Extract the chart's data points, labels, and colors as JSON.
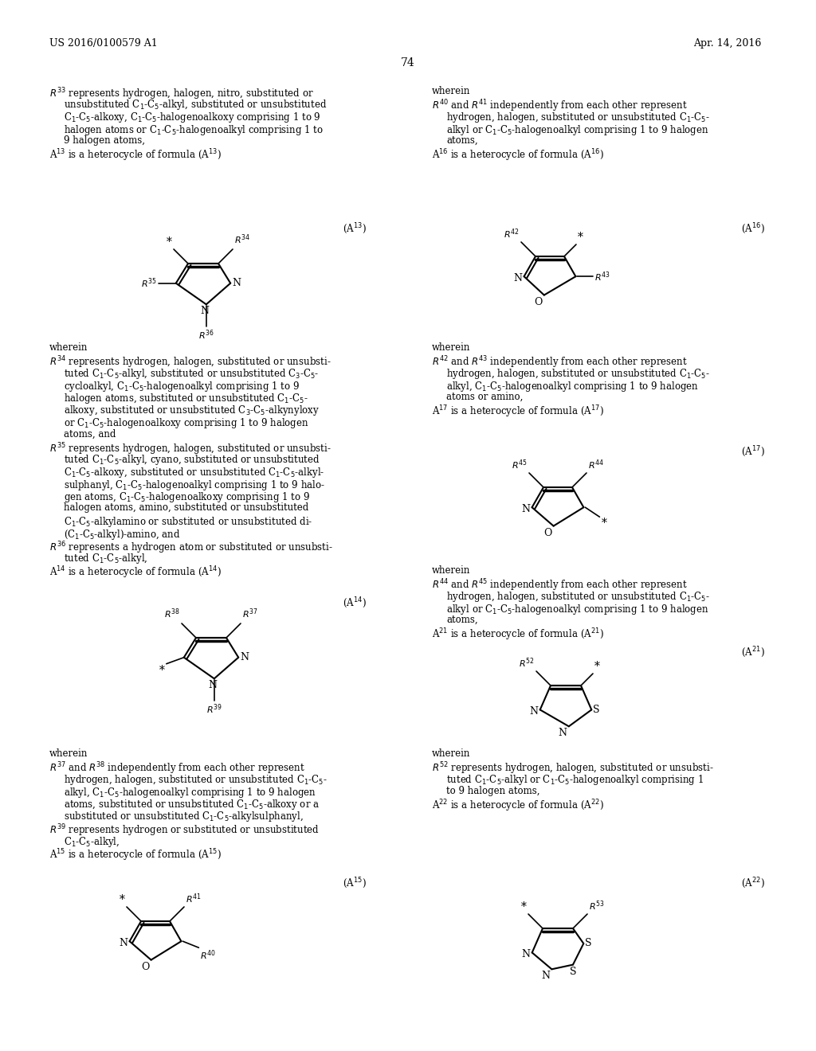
{
  "page_num": "74",
  "patent_num": "US 2016/0100579 A1",
  "patent_date": "Apr. 14, 2016",
  "bg_color": "#ffffff"
}
